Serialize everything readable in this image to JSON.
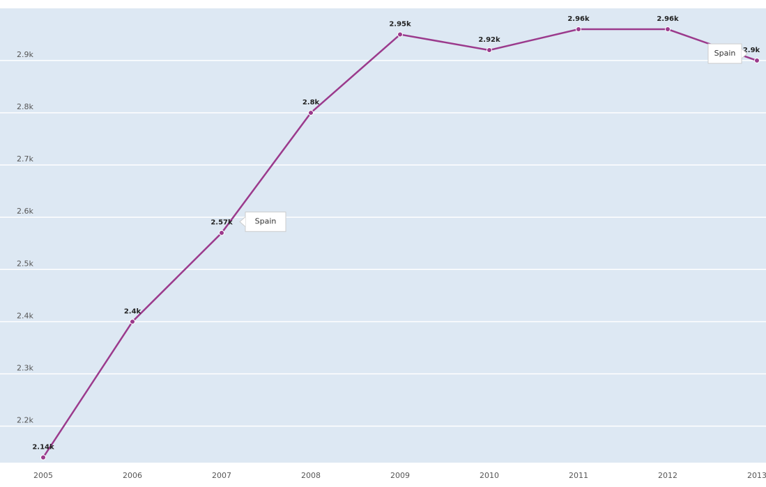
{
  "chart_data": {
    "type": "line",
    "categories": [
      "2005",
      "2006",
      "2007",
      "2008",
      "2009",
      "2010",
      "2011",
      "2012",
      "2013"
    ],
    "series": [
      {
        "name": "Spain",
        "color": "#9b3a8c",
        "values": [
          2140,
          2400,
          2570,
          2800,
          2950,
          2920,
          2960,
          2960,
          2900
        ],
        "value_labels": [
          "2.14k",
          "2.4k",
          "2.57k",
          "2.8k",
          "2.95k",
          "2.92k",
          "2.96k",
          "2.96k",
          "2.9k"
        ]
      }
    ],
    "ylim": [
      2130,
      3000
    ],
    "yticks": [
      {
        "value": 2200,
        "label": "2.2k"
      },
      {
        "value": 2300,
        "label": "2.3k"
      },
      {
        "value": 2400,
        "label": "2.4k"
      },
      {
        "value": 2500,
        "label": "2.5k"
      },
      {
        "value": 2600,
        "label": "2.6k"
      },
      {
        "value": 2700,
        "label": "2.7k"
      },
      {
        "value": 2800,
        "label": "2.8k"
      },
      {
        "value": 2900,
        "label": "2.9k"
      }
    ],
    "grid": true
  }
}
